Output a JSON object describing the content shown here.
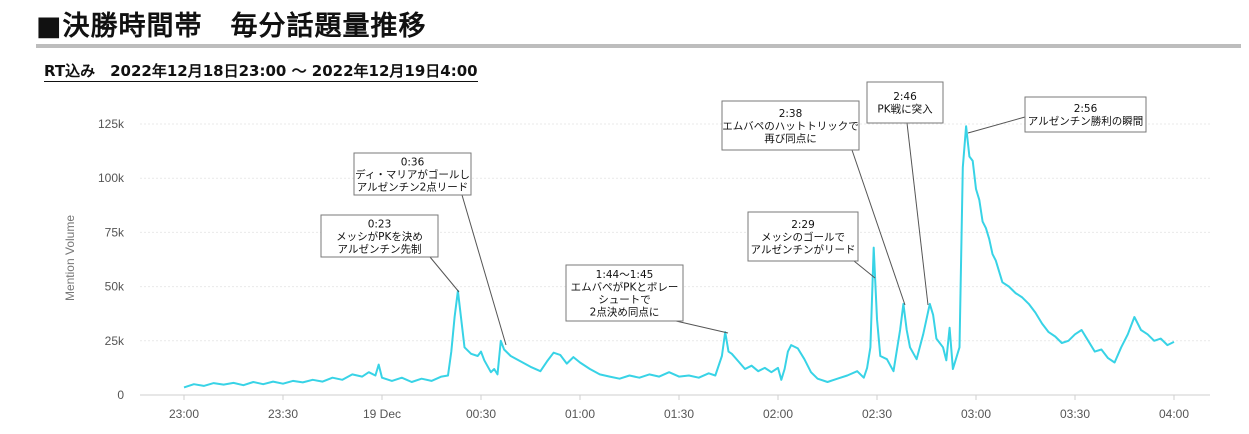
{
  "page": {
    "title": "■決勝時間帯　毎分話題量推移",
    "subtitle": "RT込み　2022年12月18日23:00 ～ 2022年12月19日4:00"
  },
  "colors": {
    "line": "#38d3e6",
    "grid": "#e9e9e9",
    "accent_rule": "#bdbdbd"
  },
  "chart_data": {
    "type": "line",
    "title": "",
    "xlabel": "",
    "ylabel": "Mention Volume",
    "ylim": [
      0,
      125000
    ],
    "xlim_minutes": [
      0,
      300
    ],
    "grid": true,
    "legend": "none",
    "y_ticks": [
      0,
      25000,
      50000,
      75000,
      100000,
      125000
    ],
    "y_tick_labels": [
      "0",
      "25k",
      "50k",
      "75k",
      "100k",
      "125k"
    ],
    "x_ticks": [
      "23:00",
      "23:30",
      "19 Dec",
      "00:30",
      "01:00",
      "01:30",
      "02:00",
      "02:30",
      "03:00",
      "03:30",
      "04:00"
    ],
    "series": [
      {
        "name": "",
        "color": "#38d3e6",
        "points": [
          [
            "23:00",
            3500
          ],
          [
            "23:03",
            5000
          ],
          [
            "23:06",
            4200
          ],
          [
            "23:09",
            5500
          ],
          [
            "23:12",
            4800
          ],
          [
            "23:15",
            5600
          ],
          [
            "23:18",
            4500
          ],
          [
            "23:21",
            6000
          ],
          [
            "23:24",
            5000
          ],
          [
            "23:27",
            6200
          ],
          [
            "23:30",
            5200
          ],
          [
            "23:33",
            6500
          ],
          [
            "23:36",
            5800
          ],
          [
            "23:39",
            7000
          ],
          [
            "23:42",
            6200
          ],
          [
            "23:45",
            8000
          ],
          [
            "23:48",
            7000
          ],
          [
            "23:51",
            9500
          ],
          [
            "23:54",
            8500
          ],
          [
            "23:56",
            10500
          ],
          [
            "23:58",
            9000
          ],
          [
            "23:59",
            14000
          ],
          [
            "00:00",
            8000
          ],
          [
            "00:03",
            6500
          ],
          [
            "00:06",
            8000
          ],
          [
            "00:09",
            6000
          ],
          [
            "00:12",
            7500
          ],
          [
            "00:15",
            6500
          ],
          [
            "00:18",
            8500
          ],
          [
            "00:20",
            9000
          ],
          [
            "00:21",
            20000
          ],
          [
            "00:22",
            36000
          ],
          [
            "00:23",
            48000
          ],
          [
            "00:24",
            35000
          ],
          [
            "00:25",
            22000
          ],
          [
            "00:27",
            19000
          ],
          [
            "00:29",
            18000
          ],
          [
            "00:30",
            20000
          ],
          [
            "00:31",
            16000
          ],
          [
            "00:33",
            10500
          ],
          [
            "00:34",
            12000
          ],
          [
            "00:35",
            9500
          ],
          [
            "00:36",
            25000
          ],
          [
            "00:37",
            21000
          ],
          [
            "00:39",
            18000
          ],
          [
            "00:42",
            15500
          ],
          [
            "00:45",
            13000
          ],
          [
            "00:48",
            11000
          ],
          [
            "00:50",
            15500
          ],
          [
            "00:52",
            19500
          ],
          [
            "00:54",
            18500
          ],
          [
            "00:56",
            14500
          ],
          [
            "00:58",
            17500
          ],
          [
            "01:00",
            15000
          ],
          [
            "01:03",
            12000
          ],
          [
            "01:06",
            9500
          ],
          [
            "01:09",
            8500
          ],
          [
            "01:12",
            7500
          ],
          [
            "01:15",
            9000
          ],
          [
            "01:18",
            8000
          ],
          [
            "01:21",
            9500
          ],
          [
            "01:24",
            8500
          ],
          [
            "01:27",
            10500
          ],
          [
            "01:30",
            8500
          ],
          [
            "01:33",
            9000
          ],
          [
            "01:36",
            8000
          ],
          [
            "01:39",
            10000
          ],
          [
            "01:41",
            9000
          ],
          [
            "01:43",
            18000
          ],
          [
            "01:44",
            29000
          ],
          [
            "01:45",
            20000
          ],
          [
            "01:46",
            19000
          ],
          [
            "01:48",
            15500
          ],
          [
            "01:50",
            12000
          ],
          [
            "01:52",
            13500
          ],
          [
            "01:54",
            11000
          ],
          [
            "01:56",
            12500
          ],
          [
            "01:58",
            10500
          ],
          [
            "02:00",
            12500
          ],
          [
            "02:01",
            7000
          ],
          [
            "02:02",
            12000
          ],
          [
            "02:03",
            20000
          ],
          [
            "02:04",
            23000
          ],
          [
            "02:06",
            21500
          ],
          [
            "02:08",
            16500
          ],
          [
            "02:10",
            10500
          ],
          [
            "02:12",
            7500
          ],
          [
            "02:15",
            6000
          ],
          [
            "02:18",
            7500
          ],
          [
            "02:21",
            9000
          ],
          [
            "02:24",
            11000
          ],
          [
            "02:26",
            8000
          ],
          [
            "02:27",
            12500
          ],
          [
            "02:28",
            22000
          ],
          [
            "02:29",
            68000
          ],
          [
            "02:30",
            35000
          ],
          [
            "02:31",
            18000
          ],
          [
            "02:33",
            16500
          ],
          [
            "02:35",
            11000
          ],
          [
            "02:37",
            30000
          ],
          [
            "02:38",
            42000
          ],
          [
            "02:39",
            30000
          ],
          [
            "02:40",
            22000
          ],
          [
            "02:42",
            16500
          ],
          [
            "02:44",
            28000
          ],
          [
            "02:46",
            42000
          ],
          [
            "02:47",
            37000
          ],
          [
            "02:48",
            26000
          ],
          [
            "02:50",
            22000
          ],
          [
            "02:51",
            16000
          ],
          [
            "02:52",
            31000
          ],
          [
            "02:53",
            12000
          ],
          [
            "02:55",
            22000
          ],
          [
            "02:56",
            105000
          ],
          [
            "02:57",
            124000
          ],
          [
            "02:58",
            110000
          ],
          [
            "02:59",
            108000
          ],
          [
            "03:00",
            95000
          ],
          [
            "03:01",
            90000
          ],
          [
            "03:02",
            80000
          ],
          [
            "03:03",
            77000
          ],
          [
            "03:04",
            72000
          ],
          [
            "03:05",
            65000
          ],
          [
            "03:06",
            62000
          ],
          [
            "03:07",
            57000
          ],
          [
            "03:08",
            52000
          ],
          [
            "03:10",
            50000
          ],
          [
            "03:12",
            47000
          ],
          [
            "03:14",
            45000
          ],
          [
            "03:16",
            42000
          ],
          [
            "03:18",
            38000
          ],
          [
            "03:20",
            33000
          ],
          [
            "03:22",
            29000
          ],
          [
            "03:24",
            27000
          ],
          [
            "03:26",
            24000
          ],
          [
            "03:28",
            25000
          ],
          [
            "03:30",
            28000
          ],
          [
            "03:32",
            30000
          ],
          [
            "03:34",
            25000
          ],
          [
            "03:36",
            20000
          ],
          [
            "03:38",
            21000
          ],
          [
            "03:40",
            17000
          ],
          [
            "03:42",
            15000
          ],
          [
            "03:44",
            22000
          ],
          [
            "03:46",
            28000
          ],
          [
            "03:48",
            36000
          ],
          [
            "03:50",
            30000
          ],
          [
            "03:52",
            28000
          ],
          [
            "03:54",
            25000
          ],
          [
            "03:56",
            26000
          ],
          [
            "03:58",
            23000
          ],
          [
            "04:00",
            24500
          ]
        ]
      }
    ],
    "annotations": [
      {
        "time": "0:23",
        "lines": [
          "0:23",
          "メッシがPKを決め",
          "アルゼンチン先制"
        ]
      },
      {
        "time": "0:36",
        "lines": [
          "0:36",
          "ディ・マリアがゴールし",
          "アルゼンチン2点リード"
        ]
      },
      {
        "time": "1:44〜1:45",
        "lines": [
          "1:44〜1:45",
          "エムバペがPKとボレー",
          "シュートで",
          "2点決め同点に"
        ]
      },
      {
        "time": "2:29",
        "lines": [
          "2:29",
          "メッシのゴールで",
          "アルゼンチンがリード"
        ]
      },
      {
        "time": "2:38",
        "lines": [
          "2:38",
          "エムバペのハットトリックで",
          "再び同点に"
        ]
      },
      {
        "time": "2:46",
        "lines": [
          "2:46",
          "PK戦に突入"
        ]
      },
      {
        "time": "2:56",
        "lines": [
          "2:56",
          "アルゼンチン勝利の瞬間"
        ]
      }
    ]
  }
}
